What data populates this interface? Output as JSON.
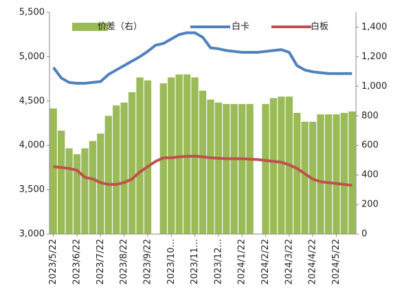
{
  "chart_data": {
    "type": "combo",
    "categories": [
      "2023/5/22",
      null,
      null,
      "2023/6/22",
      null,
      null,
      "2023/7/22",
      null,
      null,
      "2023/8/22",
      null,
      null,
      "2023/9/22",
      null,
      null,
      "2023/10...",
      null,
      null,
      "2023/11...",
      null,
      null,
      "2023/12...",
      null,
      null,
      "2024/1/22",
      null,
      null,
      "2024/2/22",
      null,
      null,
      "2024/3/22",
      null,
      null,
      "2024/4/22",
      null,
      null,
      "2024/5/22",
      null,
      null
    ],
    "series": [
      {
        "name": "价差（右）",
        "type": "bar",
        "axis": "y2",
        "color": "#9bbb59",
        "values": [
          850,
          700,
          580,
          540,
          580,
          630,
          680,
          800,
          870,
          890,
          960,
          1060,
          1040,
          null,
          1020,
          1060,
          1080,
          1080,
          1060,
          970,
          910,
          890,
          880,
          880,
          880,
          880,
          null,
          880,
          920,
          930,
          930,
          820,
          760,
          760,
          810,
          810,
          810,
          820,
          830
        ]
      },
      {
        "name": "白卡",
        "type": "line",
        "color": "#4f81bd",
        "values": [
          4880,
          4760,
          4710,
          4700,
          4700,
          4710,
          4720,
          4800,
          4850,
          4900,
          4950,
          5000,
          5060,
          5130,
          5150,
          5200,
          5250,
          5270,
          5270,
          5220,
          5100,
          5090,
          5070,
          5060,
          5050,
          5050,
          5050,
          5060,
          5070,
          5080,
          5050,
          4900,
          4850,
          4830,
          4820,
          4810,
          4810,
          4810,
          4810
        ]
      },
      {
        "name": "白板",
        "type": "line",
        "color": "#c0504d",
        "values": [
          3760,
          3750,
          3740,
          3720,
          3640,
          3620,
          3580,
          3560,
          3560,
          3580,
          3620,
          3700,
          3760,
          3820,
          3860,
          3860,
          3870,
          3875,
          3880,
          3870,
          3860,
          3855,
          3850,
          3850,
          3850,
          3845,
          3840,
          3830,
          3820,
          3810,
          3780,
          3740,
          3680,
          3620,
          3590,
          3580,
          3570,
          3560,
          3550
        ]
      }
    ],
    "ylim": [
      3000,
      5500
    ],
    "yticks": [
      {
        "value": 3000,
        "label": "3,000"
      },
      {
        "value": 3500,
        "label": "3,500"
      },
      {
        "value": 4000,
        "label": "4,000"
      },
      {
        "value": 4500,
        "label": "4,500"
      },
      {
        "value": 5000,
        "label": "5,000"
      },
      {
        "value": 5500,
        "label": "5,500"
      }
    ],
    "y2lim": [
      0,
      1500
    ],
    "y2ticks": [
      0,
      200,
      400,
      600,
      800,
      {
        "value": 1000,
        "label": "1,000"
      },
      {
        "value": 1200,
        "label": "1,200"
      },
      {
        "value": 1400,
        "label": "1,400"
      }
    ],
    "legend": "top",
    "grid": false
  }
}
